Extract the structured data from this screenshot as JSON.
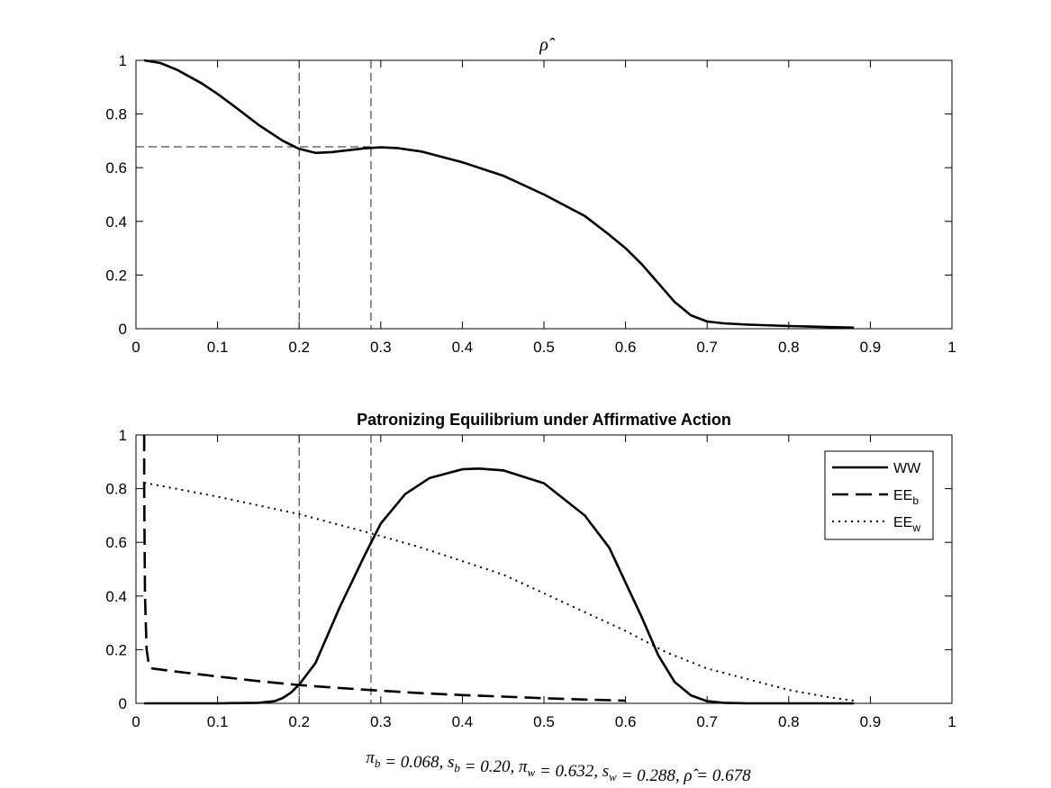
{
  "chart_data": [
    {
      "type": "line",
      "title": "ρ̂",
      "xlim": [
        0,
        1
      ],
      "ylim": [
        0,
        1
      ],
      "xticks": [
        "0",
        "0.1",
        "0.2",
        "0.3",
        "0.4",
        "0.5",
        "0.6",
        "0.7",
        "0.8",
        "0.9",
        "1"
      ],
      "yticks": [
        "0",
        "0.2",
        "0.4",
        "0.6",
        "0.8",
        "1"
      ],
      "series": [
        {
          "style": "solid",
          "x": [
            0.01,
            0.03,
            0.05,
            0.08,
            0.1,
            0.12,
            0.15,
            0.18,
            0.2,
            0.22,
            0.24,
            0.26,
            0.28,
            0.3,
            0.32,
            0.35,
            0.4,
            0.45,
            0.5,
            0.55,
            0.58,
            0.6,
            0.62,
            0.64,
            0.66,
            0.68,
            0.7,
            0.72,
            0.75,
            0.8,
            0.85,
            0.88
          ],
          "y": [
            1.0,
            0.99,
            0.965,
            0.915,
            0.875,
            0.83,
            0.76,
            0.7,
            0.67,
            0.655,
            0.658,
            0.665,
            0.672,
            0.676,
            0.673,
            0.66,
            0.62,
            0.57,
            0.5,
            0.42,
            0.35,
            0.3,
            0.24,
            0.17,
            0.1,
            0.05,
            0.027,
            0.02,
            0.015,
            0.01,
            0.006,
            0.004
          ]
        }
      ],
      "reference_lines": {
        "style": "dashed",
        "vertical_x": [
          0.2,
          0.288
        ],
        "horizontal_y": 0.678,
        "horizontal_from_x": 0,
        "horizontal_to_x": 0.288
      }
    },
    {
      "type": "line",
      "title": "Patronizing Equilibrium under Affirmative Action",
      "xlim": [
        0,
        1
      ],
      "ylim": [
        0,
        1
      ],
      "xticks": [
        "0",
        "0.1",
        "0.2",
        "0.3",
        "0.4",
        "0.5",
        "0.6",
        "0.7",
        "0.8",
        "0.9",
        "1"
      ],
      "yticks": [
        "0",
        "0.2",
        "0.4",
        "0.6",
        "0.8",
        "1"
      ],
      "legend_position": "top-right",
      "series": [
        {
          "name": "WW",
          "style": "solid",
          "x": [
            0.01,
            0.1,
            0.15,
            0.17,
            0.18,
            0.19,
            0.2,
            0.22,
            0.25,
            0.28,
            0.3,
            0.33,
            0.36,
            0.4,
            0.42,
            0.45,
            0.5,
            0.55,
            0.58,
            0.6,
            0.62,
            0.64,
            0.66,
            0.68,
            0.7,
            0.72,
            0.75,
            0.8,
            0.88
          ],
          "y": [
            0.0,
            0.0,
            0.002,
            0.008,
            0.02,
            0.04,
            0.07,
            0.15,
            0.36,
            0.55,
            0.67,
            0.78,
            0.84,
            0.872,
            0.875,
            0.868,
            0.82,
            0.7,
            0.58,
            0.45,
            0.32,
            0.18,
            0.08,
            0.03,
            0.008,
            0.002,
            0.0,
            0.0,
            0.0
          ]
        },
        {
          "name": "EE",
          "name_sub": "b",
          "style": "dashed",
          "x": [
            0.01,
            0.01,
            0.011,
            0.013,
            0.016,
            0.02,
            0.05,
            0.1,
            0.15,
            0.2,
            0.25,
            0.3,
            0.35,
            0.4,
            0.45,
            0.5,
            0.55,
            0.6
          ],
          "y": [
            1.0,
            0.8,
            0.4,
            0.2,
            0.14,
            0.13,
            0.118,
            0.1,
            0.083,
            0.068,
            0.057,
            0.047,
            0.038,
            0.031,
            0.025,
            0.019,
            0.014,
            0.01
          ]
        },
        {
          "name": "EE",
          "name_sub": "w",
          "style": "dotted",
          "x": [
            0.01,
            0.1,
            0.2,
            0.29,
            0.35,
            0.4,
            0.45,
            0.5,
            0.55,
            0.6,
            0.65,
            0.7,
            0.75,
            0.8,
            0.85,
            0.88
          ],
          "y": [
            0.822,
            0.77,
            0.705,
            0.632,
            0.58,
            0.53,
            0.48,
            0.41,
            0.34,
            0.27,
            0.19,
            0.13,
            0.09,
            0.05,
            0.022,
            0.01
          ]
        }
      ],
      "reference_lines": {
        "style": "dashed",
        "vertical_x": [
          0.2,
          0.288
        ]
      }
    }
  ],
  "footer_parts": [
    {
      "t": "π",
      "sub": "b"
    },
    {
      "t": " = 0.068, "
    },
    {
      "t": "s",
      "sub": "b"
    },
    {
      "t": " = 0.20, "
    },
    {
      "t": "π",
      "sub": "w"
    },
    {
      "t": " = 0.632, "
    },
    {
      "t": "s",
      "sub": "w"
    },
    {
      "t": " = 0.288, "
    },
    {
      "t": "ρ̂"
    },
    {
      "t": " = 0.678"
    }
  ]
}
